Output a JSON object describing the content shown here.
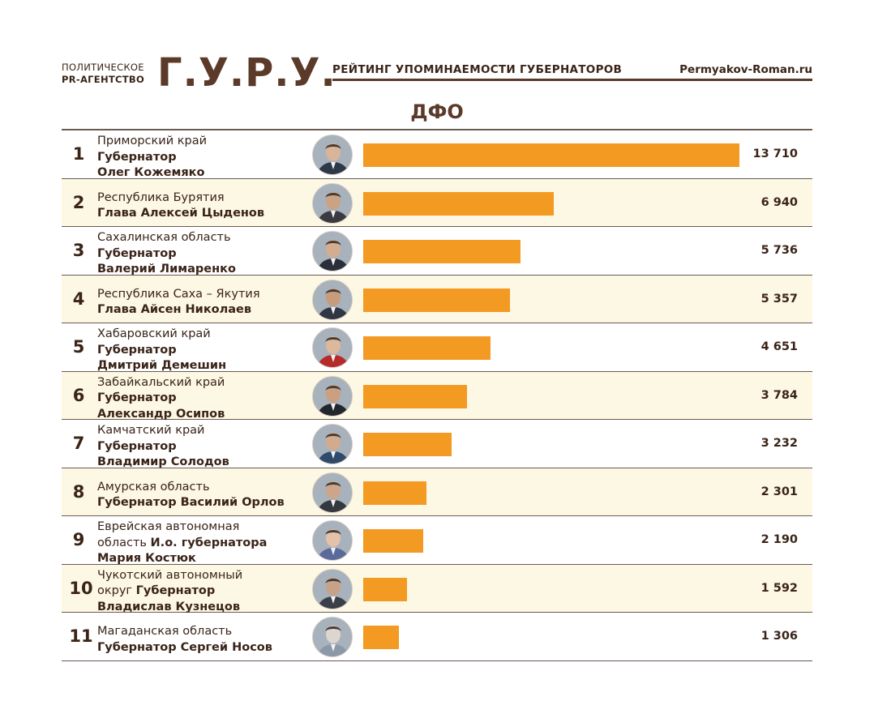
{
  "header": {
    "agency_line1": "ПОЛИТИЧЕСКОЕ",
    "agency_line2": "PR-АГЕНТСТВО",
    "brand": "Г.У.Р.У.",
    "subtitle": "РЕЙТИНГ УПОМИНАЕМОСТИ ГУБЕРНАТОРОВ",
    "site": "Permyakov-Roman.ru"
  },
  "region_title": "ДФО",
  "colors": {
    "bar": "#f39a22",
    "brand": "#5b3a2a",
    "row_highlight": "#fdf8e4",
    "text": "#3a2418"
  },
  "chart_data": {
    "type": "bar",
    "orientation": "horizontal",
    "title": "РЕЙТИНГ УПОМИНАЕМОСТИ ГУБЕРНАТОРОВ",
    "subtitle": "ДФО",
    "xlim": [
      0,
      13710
    ],
    "rows": [
      {
        "rank": "1",
        "region": "Приморский край",
        "title": "Губернатор",
        "name": "Олег Кожемяко",
        "value": 13710,
        "value_label": "13 710",
        "photo": "portrait-photo"
      },
      {
        "rank": "2",
        "region": "Республика Бурятия",
        "title": "Глава Алексей Цыденов",
        "name": "",
        "value": 6940,
        "value_label": "6 940",
        "photo": "portrait-photo"
      },
      {
        "rank": "3",
        "region": "Сахалинская область",
        "title": "Губернатор",
        "name": "Валерий Лимаренко",
        "value": 5736,
        "value_label": "5 736",
        "photo": "portrait-photo"
      },
      {
        "rank": "4",
        "region": "Республика Саха – Якутия",
        "title": "Глава Айсен Николаев",
        "name": "",
        "value": 5357,
        "value_label": "5 357",
        "photo": "portrait-photo"
      },
      {
        "rank": "5",
        "region": "Хабаровский край",
        "title": "Губернатор",
        "name": "Дмитрий Демешин",
        "value": 4651,
        "value_label": "4 651",
        "photo": "portrait-photo"
      },
      {
        "rank": "6",
        "region": "Забайкальский край",
        "title": "Губернатор",
        "name": "Александр Осипов",
        "value": 3784,
        "value_label": "3 784",
        "photo": "portrait-photo"
      },
      {
        "rank": "7",
        "region": "Камчатский край",
        "title": "Губернатор",
        "name": "Владимир Солодов",
        "value": 3232,
        "value_label": "3 232",
        "photo": "portrait-photo"
      },
      {
        "rank": "8",
        "region": "Амурская область",
        "title": "Губернатор Василий Орлов",
        "name": "",
        "value": 2301,
        "value_label": "2 301",
        "photo": "portrait-photo"
      },
      {
        "rank": "9",
        "region": "Еврейская автономная",
        "region_cont": "область",
        "title": "И.о. губернатора",
        "name": "Мария Костюк",
        "value": 2190,
        "value_label": "2 190",
        "photo": "portrait-photo"
      },
      {
        "rank": "10",
        "region": "Чукотский автономный",
        "region_cont": "округ",
        "title": "Губернатор",
        "name": "Владислав Кузнецов",
        "value": 1592,
        "value_label": "1 592",
        "photo": "portrait-photo"
      },
      {
        "rank": "11",
        "region": "Магаданская область",
        "title": "Губернатор Сергей Носов",
        "name": "",
        "value": 1306,
        "value_label": "1 306",
        "photo": "portrait-photo"
      }
    ]
  }
}
